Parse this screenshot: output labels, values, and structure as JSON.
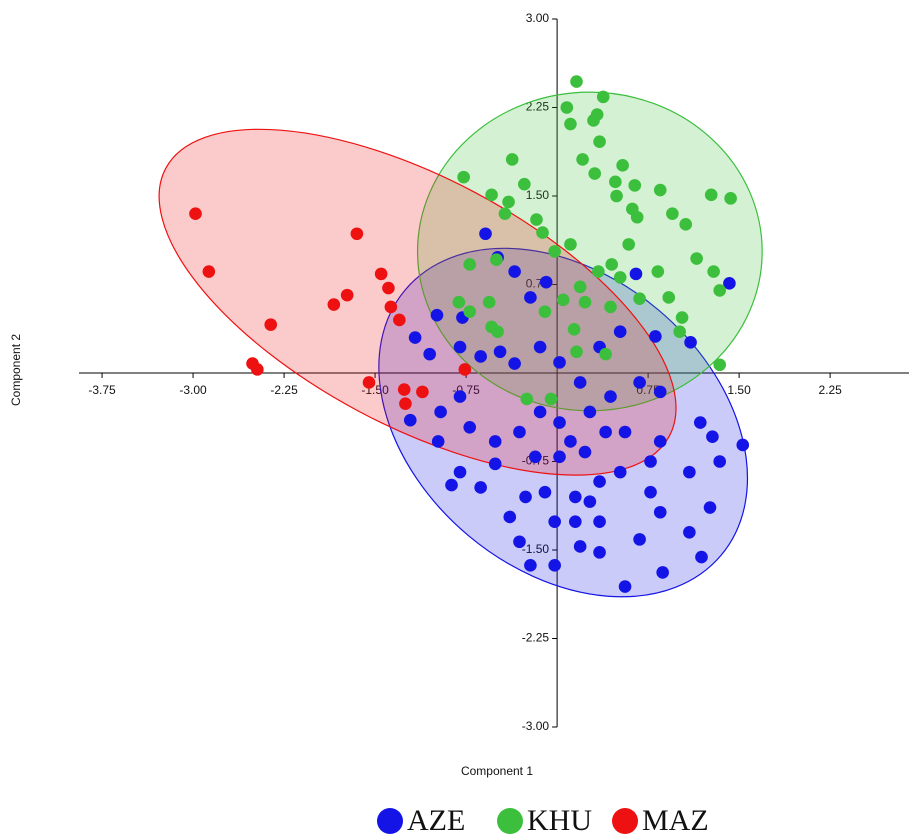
{
  "chart_data": {
    "type": "scatter",
    "xlabel": "Component 1",
    "ylabel": "Component 2",
    "xlim": [
      -3.94,
      2.9
    ],
    "ylim": [
      -3.0,
      3.0
    ],
    "xticks": [
      {
        "value": -3.75,
        "label": "-3.75"
      },
      {
        "value": -3.0,
        "label": "-3.00"
      },
      {
        "value": -2.25,
        "label": "-2.25"
      },
      {
        "value": -1.5,
        "label": "-1.50"
      },
      {
        "value": -0.75,
        "label": "-0.75"
      },
      {
        "value": 0.75,
        "label": "0.75"
      },
      {
        "value": 1.5,
        "label": "1.50"
      },
      {
        "value": 2.25,
        "label": "2.25"
      }
    ],
    "yticks": [
      {
        "value": 3.0,
        "label": "3.00"
      },
      {
        "value": 2.25,
        "label": "2.25"
      },
      {
        "value": 1.5,
        "label": "1.50"
      },
      {
        "value": 0.75,
        "label": "0.75"
      },
      {
        "value": -0.75,
        "label": "-0.75"
      },
      {
        "value": -1.5,
        "label": "-1.50"
      },
      {
        "value": -2.25,
        "label": "-2.25"
      },
      {
        "value": -3.0,
        "label": "-3.00"
      }
    ],
    "series": [
      {
        "name": "AZE",
        "color": "#1414e6",
        "ellipse": {
          "cx": 0.05,
          "cy": -0.42,
          "rx": 1.7,
          "ry": 1.25,
          "angle": 40
        },
        "x": [
          -0.59,
          1.42,
          0.65,
          1.53,
          -0.49,
          -0.35,
          -0.09,
          -0.22,
          -0.78,
          -0.99,
          -1.17,
          -1.05,
          -0.8,
          -0.63,
          -0.47,
          -0.35,
          -0.14,
          0.02,
          0.19,
          0.35,
          0.52,
          0.81,
          1.1,
          0.68,
          0.85,
          0.44,
          0.27,
          0.02,
          -0.14,
          -0.31,
          -0.51,
          -0.72,
          -0.96,
          -1.21,
          -0.8,
          -0.98,
          -0.51,
          -0.87,
          -0.63,
          -0.39,
          -0.31,
          -0.22,
          -0.02,
          0.19,
          0.35,
          0.56,
          0.87,
          1.19,
          1.09,
          0.85,
          1.26,
          1.34,
          1.09,
          0.77,
          0.52,
          0.35,
          0.15,
          -0.02,
          0.15,
          0.35,
          0.23,
          0.02,
          -0.18,
          0.56,
          0.85,
          1.18,
          1.28,
          0.77,
          0.4,
          0.11,
          -0.26,
          -0.1,
          -0.8,
          0.68,
          0.27
        ],
        "y": [
          1.18,
          0.76,
          0.84,
          -0.61,
          0.98,
          0.86,
          0.77,
          0.64,
          0.47,
          0.49,
          0.3,
          0.16,
          0.22,
          0.14,
          0.18,
          0.08,
          0.22,
          0.09,
          -0.08,
          0.22,
          0.35,
          0.31,
          0.26,
          -0.08,
          -0.16,
          -0.2,
          -0.33,
          -0.42,
          -0.33,
          -0.5,
          -0.58,
          -0.46,
          -0.33,
          -0.4,
          -0.2,
          -0.58,
          -0.77,
          -0.95,
          -0.97,
          -1.22,
          -1.43,
          -1.63,
          -1.63,
          -1.47,
          -1.52,
          -1.81,
          -1.69,
          -1.56,
          -1.35,
          -1.18,
          -1.14,
          -0.75,
          -0.84,
          -1.01,
          -0.84,
          -0.92,
          -1.05,
          -1.26,
          -1.26,
          -1.26,
          -0.67,
          -0.71,
          -0.71,
          -0.5,
          -0.58,
          -0.42,
          -0.54,
          -0.75,
          -0.5,
          -0.58,
          -1.05,
          -1.01,
          -0.84,
          -1.41,
          -1.09
        ]
      },
      {
        "name": "KHU",
        "color": "#3cbf3c",
        "ellipse": {
          "cx": 0.27,
          "cy": 1.03,
          "rx": 1.42,
          "ry": 1.35,
          "angle": 0
        },
        "x": [
          0.16,
          0.38,
          0.08,
          0.33,
          0.3,
          0.11,
          0.35,
          0.21,
          -0.37,
          0.54,
          0.31,
          0.64,
          0.48,
          -0.77,
          -0.27,
          -0.54,
          -0.4,
          0.49,
          0.85,
          1.27,
          1.43,
          0.62,
          0.95,
          1.06,
          -0.17,
          -0.43,
          -0.12,
          0.66,
          0.59,
          0.11,
          -0.02,
          0.45,
          0.34,
          0.83,
          0.52,
          1.15,
          1.29,
          0.19,
          0.05,
          -0.1,
          -0.56,
          -0.81,
          -0.72,
          -0.54,
          -0.49,
          0.23,
          0.44,
          0.68,
          0.92,
          1.34,
          1.03,
          1.01,
          0.14,
          0.16,
          0.4,
          1.34,
          -0.25,
          -0.05,
          -0.72,
          -0.5
        ],
        "y": [
          2.47,
          2.34,
          2.25,
          2.19,
          2.14,
          2.11,
          1.96,
          1.81,
          1.81,
          1.76,
          1.69,
          1.59,
          1.62,
          1.66,
          1.6,
          1.51,
          1.45,
          1.5,
          1.55,
          1.51,
          1.48,
          1.39,
          1.35,
          1.26,
          1.3,
          1.35,
          1.19,
          1.32,
          1.09,
          1.09,
          1.03,
          0.92,
          0.86,
          0.86,
          0.81,
          0.97,
          0.86,
          0.73,
          0.62,
          0.52,
          0.6,
          0.6,
          0.52,
          0.39,
          0.35,
          0.6,
          0.56,
          0.63,
          0.64,
          0.7,
          0.47,
          0.35,
          0.37,
          0.18,
          0.16,
          0.07,
          -0.22,
          -0.22,
          0.92,
          0.96
        ]
      },
      {
        "name": "MAZ",
        "color": "#ee1111",
        "ellipse": {
          "cx": -1.15,
          "cy": 0.6,
          "rx": 2.35,
          "ry": 1.05,
          "angle": 28
        },
        "x": [
          -2.98,
          -2.87,
          -1.65,
          -1.45,
          -1.39,
          -1.73,
          -1.84,
          -1.37,
          -1.3,
          -2.36,
          -2.51,
          -2.47,
          -1.55,
          -1.26,
          -1.25,
          -1.11,
          -0.76
        ],
        "y": [
          1.35,
          0.86,
          1.18,
          0.84,
          0.72,
          0.66,
          0.58,
          0.56,
          0.45,
          0.41,
          0.08,
          0.03,
          -0.08,
          -0.14,
          -0.26,
          -0.16,
          0.03
        ]
      }
    ]
  }
}
